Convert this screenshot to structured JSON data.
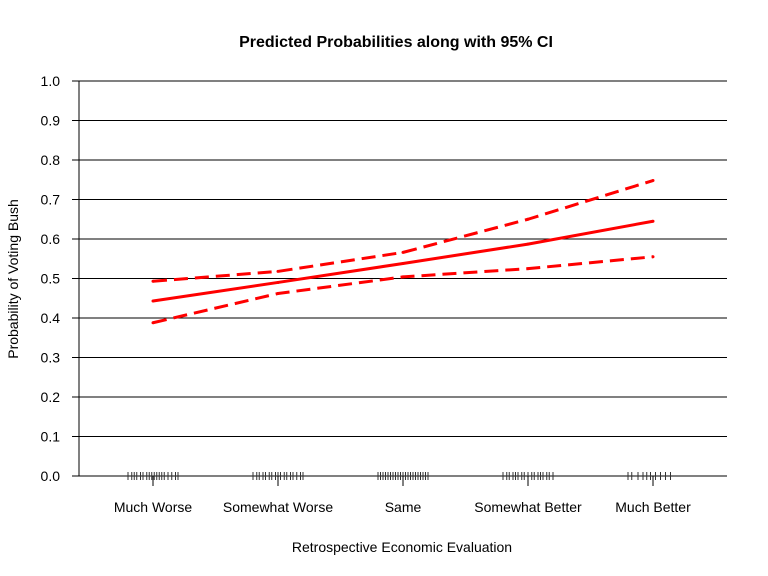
{
  "chart_data": {
    "type": "line",
    "title": "Predicted Probabilities along with 95% CI",
    "xlabel": "Retrospective Economic Evaluation",
    "ylabel": "Probability of Voting Bush",
    "categories": [
      "Much Worse",
      "Somewhat Worse",
      "Same",
      "Somewhat Better",
      "Much Better"
    ],
    "ylim": [
      0,
      1
    ],
    "yticks": [
      "0.0",
      "0.1",
      "0.2",
      "0.3",
      "0.4",
      "0.5",
      "0.6",
      "0.7",
      "0.8",
      "0.9",
      "1.0"
    ],
    "grid": "horizontal",
    "series": [
      {
        "values": [
          0.443,
          0.49,
          0.538,
          0.587,
          0.645
        ],
        "style": "solid",
        "color": "#ff0000"
      },
      {
        "values": [
          0.493,
          0.518,
          0.566,
          0.65,
          0.748
        ],
        "style": "dashed",
        "color": "#ff0000"
      },
      {
        "values": [
          0.388,
          0.462,
          0.504,
          0.525,
          0.555
        ],
        "style": "dashed",
        "color": "#ff0000"
      }
    ],
    "rug": [
      {
        "category_index": 0,
        "offsets": [
          -0.2,
          -0.17,
          -0.15,
          -0.13,
          -0.1,
          -0.08,
          -0.05,
          -0.03,
          -0.01,
          0.01,
          0.03,
          0.05,
          0.07,
          0.09,
          0.12,
          0.15,
          0.18,
          0.2
        ]
      },
      {
        "category_index": 1,
        "offsets": [
          -0.2,
          -0.17,
          -0.15,
          -0.12,
          -0.1,
          -0.07,
          -0.05,
          -0.02,
          0,
          0.02,
          0.05,
          0.07,
          0.1,
          0.12,
          0.15,
          0.18,
          0.2
        ]
      },
      {
        "category_index": 2,
        "offsets": [
          -0.2,
          -0.18,
          -0.16,
          -0.14,
          -0.12,
          -0.1,
          -0.08,
          -0.06,
          -0.04,
          -0.02,
          0,
          0.02,
          0.04,
          0.06,
          0.08,
          0.1,
          0.12,
          0.14,
          0.16,
          0.18,
          0.2
        ]
      },
      {
        "category_index": 3,
        "offsets": [
          -0.2,
          -0.17,
          -0.15,
          -0.12,
          -0.1,
          -0.08,
          -0.05,
          -0.03,
          0,
          0.03,
          0.05,
          0.08,
          0.1,
          0.12,
          0.15,
          0.17,
          0.2
        ]
      },
      {
        "category_index": 4,
        "offsets": [
          -0.2,
          -0.17,
          -0.12,
          -0.08,
          -0.05,
          -0.02,
          0.02,
          0.06,
          0.1,
          0.14
        ]
      }
    ]
  }
}
